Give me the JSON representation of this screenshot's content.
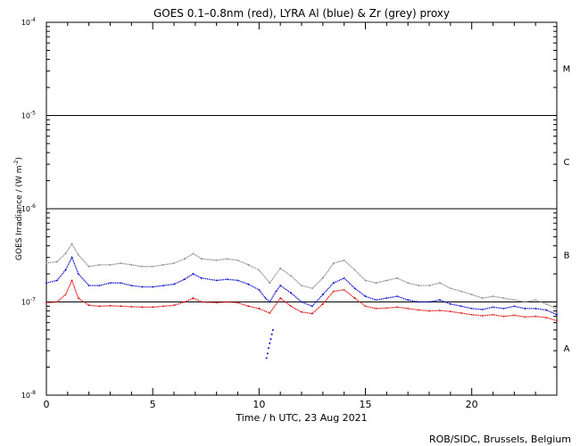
{
  "chart_data": {
    "type": "line",
    "title": "GOES 0.1–0.8nm (red), LYRA Al (blue) & Zr (grey) proxy",
    "xlabel": "Time / h UTC, 23 Aug 2021",
    "ylabel_main": "GOES Irradiance / (W m",
    "ylabel_sup": "-2",
    "ylabel_close": ")",
    "xlim": [
      0,
      24
    ],
    "ylim": [
      1e-08,
      0.0001
    ],
    "yscale": "log",
    "grid": false,
    "x_ticks": [
      {
        "value": 0,
        "label": "0"
      },
      {
        "value": 5,
        "label": "5"
      },
      {
        "value": 10,
        "label": "10"
      },
      {
        "value": 15,
        "label": "15"
      },
      {
        "value": 20,
        "label": "20"
      }
    ],
    "y_ticks": [
      {
        "exp": -8,
        "base": "10",
        "sup": "-8"
      },
      {
        "exp": -7,
        "base": "10",
        "sup": "-7"
      },
      {
        "exp": -6,
        "base": "10",
        "sup": "-6"
      },
      {
        "exp": -5,
        "base": "10",
        "sup": "-5"
      },
      {
        "exp": -4,
        "base": "10",
        "sup": "-4"
      }
    ],
    "class_lines": [
      1e-07,
      1e-06,
      1e-05
    ],
    "class_labels": [
      {
        "label": "A",
        "value": 3.2e-08
      },
      {
        "label": "B",
        "value": 3.2e-07
      },
      {
        "label": "C",
        "value": 3.2e-06
      },
      {
        "label": "M",
        "value": 3.2e-05
      }
    ],
    "series": [
      {
        "color": "#888888",
        "x": [
          0,
          0.5,
          0.9,
          1.2,
          1.5,
          2.0,
          2.5,
          3,
          3.5,
          4,
          4.5,
          5,
          5.5,
          6,
          6.5,
          6.9,
          7.3,
          8,
          8.5,
          9,
          9.5,
          10,
          10.5,
          11,
          11.5,
          12,
          12.5,
          13,
          13.5,
          14,
          14.5,
          15,
          15.5,
          16,
          16.5,
          17,
          17.5,
          18,
          18.5,
          19,
          19.5,
          20,
          20.5,
          21,
          21.5,
          22,
          22.5,
          23,
          23.5,
          24
        ],
        "y": [
          2.6e-07,
          2.7e-07,
          3.3e-07,
          4.2e-07,
          3.2e-07,
          2.4e-07,
          2.5e-07,
          2.5e-07,
          2.6e-07,
          2.5e-07,
          2.4e-07,
          2.4e-07,
          2.5e-07,
          2.6e-07,
          2.9e-07,
          3.3e-07,
          2.9e-07,
          2.8e-07,
          2.9e-07,
          2.8e-07,
          2.5e-07,
          2.2e-07,
          1.6e-07,
          2.3e-07,
          1.9e-07,
          1.5e-07,
          1.4e-07,
          1.8e-07,
          2.6e-07,
          2.8e-07,
          2.2e-07,
          1.7e-07,
          1.6e-07,
          1.7e-07,
          1.8e-07,
          1.6e-07,
          1.5e-07,
          1.5e-07,
          1.6e-07,
          1.4e-07,
          1.3e-07,
          1.2e-07,
          1.1e-07,
          1.15e-07,
          1.1e-07,
          1.05e-07,
          1e-07,
          1.05e-07,
          9.5e-08,
          8.5e-08
        ]
      },
      {
        "color": "#0000cc",
        "x": [
          0,
          0.5,
          0.9,
          1.2,
          1.5,
          2.0,
          2.5,
          3,
          3.5,
          4,
          4.5,
          5,
          5.5,
          6,
          6.5,
          6.9,
          7.3,
          8,
          8.5,
          9,
          9.5,
          10,
          10.3,
          10.5,
          10.8,
          11,
          11.5,
          12,
          12.5,
          13,
          13.5,
          14,
          14.5,
          15,
          15.5,
          16,
          16.5,
          17,
          17.5,
          18,
          18.5,
          19,
          19.5,
          20,
          20.5,
          21,
          21.5,
          22,
          22.5,
          23,
          23.5,
          24
        ],
        "y": [
          1.6e-07,
          1.7e-07,
          2.2e-07,
          3e-07,
          2e-07,
          1.5e-07,
          1.5e-07,
          1.6e-07,
          1.6e-07,
          1.5e-07,
          1.45e-07,
          1.45e-07,
          1.5e-07,
          1.55e-07,
          1.75e-07,
          2e-07,
          1.8e-07,
          1.7e-07,
          1.75e-07,
          1.7e-07,
          1.55e-07,
          1.35e-07,
          1.1e-07,
          1e-07,
          1.3e-07,
          1.5e-07,
          1.25e-07,
          1e-07,
          9e-08,
          1.2e-07,
          1.6e-07,
          1.8e-07,
          1.4e-07,
          1.15e-07,
          1.05e-07,
          1.1e-07,
          1.15e-07,
          1.05e-07,
          1e-07,
          1e-07,
          1.05e-07,
          9.5e-08,
          9e-08,
          8.5e-08,
          8.3e-08,
          8.8e-08,
          8.5e-08,
          9e-08,
          8.5e-08,
          8.5e-08,
          8.2e-08,
          7.3e-08
        ]
      },
      {
        "color": "#dd0000",
        "x": [
          0,
          0.5,
          0.9,
          1.2,
          1.5,
          2.0,
          2.5,
          3,
          3.5,
          4,
          4.5,
          5,
          5.5,
          6,
          6.5,
          6.9,
          7.3,
          8,
          8.5,
          9,
          9.5,
          10,
          10.5,
          11,
          11.5,
          12,
          12.5,
          13,
          13.5,
          14,
          14.5,
          15,
          15.5,
          16,
          16.5,
          17,
          17.5,
          18,
          18.5,
          19,
          19.5,
          20,
          20.5,
          21,
          21.5,
          22,
          22.5,
          23,
          23.5,
          24
        ],
        "y": [
          9.8e-08,
          1e-07,
          1.2e-07,
          1.7e-07,
          1.1e-07,
          9.2e-08,
          9e-08,
          9.1e-08,
          9e-08,
          8.9e-08,
          8.8e-08,
          8.8e-08,
          9e-08,
          9.2e-08,
          1e-07,
          1.1e-07,
          1e-07,
          9.8e-08,
          1e-07,
          9.8e-08,
          9e-08,
          8.5e-08,
          7.6e-08,
          1.1e-07,
          9e-08,
          7.8e-08,
          7.5e-08,
          9.5e-08,
          1.3e-07,
          1.35e-07,
          1.1e-07,
          9e-08,
          8.5e-08,
          8.6e-08,
          8.8e-08,
          8.5e-08,
          8.2e-08,
          8e-08,
          8.1e-08,
          7.9e-08,
          7.6e-08,
          7.3e-08,
          7.1e-08,
          7.3e-08,
          7e-08,
          7.2e-08,
          6.9e-08,
          7e-08,
          6.8e-08,
          6.3e-08
        ]
      }
    ],
    "dip_points": {
      "color": "#0000cc",
      "x": [
        10.35,
        10.4,
        10.45,
        10.5,
        10.55,
        10.6,
        10.65
      ],
      "y": [
        2.5e-08,
        2.8e-08,
        3.2e-08,
        3.6e-08,
        4e-08,
        4.5e-08,
        5e-08
      ]
    },
    "footer": "ROB/SIDC, Brussels, Belgium"
  }
}
